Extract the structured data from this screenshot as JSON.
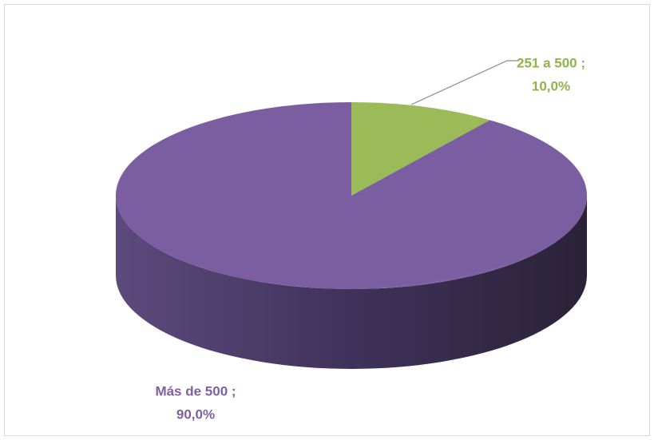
{
  "chart_data": {
    "type": "pie",
    "categories": [
      "251 a 500 ;",
      "Más de 500 ;"
    ],
    "values": [
      10,
      90
    ],
    "value_labels": [
      "10,0%",
      "90,0%"
    ],
    "colors": [
      "#9bbb59",
      "#7b5ea1"
    ]
  }
}
